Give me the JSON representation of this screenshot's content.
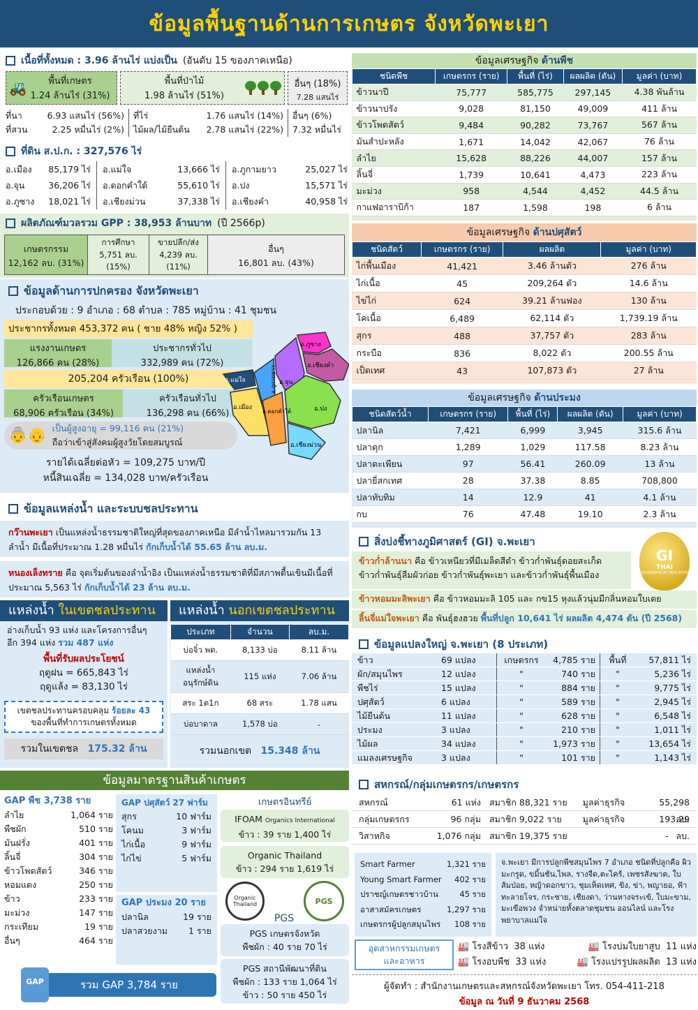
{
  "header": {
    "title": "ข้อมูลพื้นฐานด้านการเกษตร จังหวัดพะเยา"
  },
  "land": {
    "heading": "เนื้อที่ทั้งหมด : 3.96 ล้านไร่ แบ่งเป็น",
    "rank": "(อันดับ 15 ของภาคเหนือ)",
    "farm_label": "พื้นที่เกษตร",
    "farm_value": "1.24 ล้านไร่ (31%)",
    "forest_label": "พื้นที่ป่าไม้",
    "forest_value": "1.98 ล้านไร่ (51%)",
    "other_label": "อื่นๆ (18%)",
    "other_value": "7.28 แสนไร่",
    "sub": [
      {
        "label": "ที่นา",
        "value": "6.93 แสนไร่ (56%)"
      },
      {
        "label": "ที่สวน",
        "value": "2.25 หมื่นไร่ (2%)"
      },
      {
        "label": "ที่ไร่",
        "value": "1.76 แสนไร่ (14%)"
      },
      {
        "label": "ไม้ผล/ไม้ยืนต้น",
        "value": "2.78 แสนไร่ (22%)"
      },
      {
        "label": "อื่นๆ (6%)",
        "value": "7.32 หมื่นไร่"
      }
    ]
  },
  "spk": {
    "heading": "ที่ดิน ส.ป.ก. : 327,576 ไร่",
    "items": [
      {
        "name": "อ.เมือง",
        "value": "85,179 ไร่"
      },
      {
        "name": "อ.แม่ใจ",
        "value": "13,666 ไร่"
      },
      {
        "name": "อ.ภูกามยาว",
        "value": "25,027 ไร่"
      },
      {
        "name": "อ.จุน",
        "value": "36,206 ไร่"
      },
      {
        "name": "อ.ดอกคำใต้",
        "value": "55,610 ไร่"
      },
      {
        "name": "อ.ปง",
        "value": "15,571 ไร่"
      },
      {
        "name": "อ.ภูซาง",
        "value": "18,021 ไร่"
      },
      {
        "name": "อ.เชียงม่วน",
        "value": "37,338 ไร่"
      },
      {
        "name": "อ.เชียงคำ",
        "value": "40,958 ไร่"
      }
    ]
  },
  "gpp": {
    "heading": "ผลิตภัณฑ์มวลรวม GPP : 38,953 ล้านบาท",
    "year": "(ปี 2566p)",
    "agri_label": "เกษตรกรรม",
    "agri_value": "12,162 ลบ. (31%)",
    "edu_label": "การศึกษา",
    "edu_value": "5,751 ลบ.",
    "edu_pct": "(15%)",
    "trade_label": "ขายปลีก/ส่ง",
    "trade_value": "4,239 ลบ.",
    "trade_pct": "(11%)",
    "other_label": "อื่นๆ",
    "other_value": "16,801 ลบ. (43%)"
  },
  "admin": {
    "heading": "ข้อมูลด้านการปกครอง จังหวัดพะเยา",
    "compose": "ประกอบด้วย : 9 อำเภอ : 68 ตำบล : 785 หมู่บ้าน : 41 ชุมชน",
    "pop_total": "ประชากรทั้งหมด 453,372 คน ( ชาย 48% หญิง 52% )",
    "labor_label": "แรงงานเกษตร",
    "labor_value": "126,866 คน (28%)",
    "genpop_label": "ประชากรทั่วไป",
    "genpop_value": "332,989 คน  (72%)",
    "households": "205,204 ครัวเรือน  (100%)",
    "farmhh_label": "ครัวเรือนเกษตร",
    "farmhh_value": "68,906 ครัวเรือน (34%)",
    "genhh_label": "ครัวเรือนทั่วไป",
    "genhh_value": "136,298 คน (66%)",
    "elder1": "เป็นผู้สูงอายุ = 99,116 คน (21%)",
    "elder2": "ถือว่าเข้าสู่สังคมผู้สูงวัยโดยสมบูรณ์",
    "income": "รายได้เฉลี่ยต่อหัว = 109,275 บาท/ปี",
    "debt": "หนี้สินเฉลี่ย = 134,028 บาท/ครัวเรือน",
    "map_labels": [
      "อ.ภูซาง",
      "อ.เชียงคำ",
      "อ.แม่ใจ",
      "อ.ภูกามยาว",
      "อ.จุน",
      "อ.เมือง",
      "อ.ดอกคำใต้",
      "อ.ปง",
      "อ.เชียงม่วน"
    ]
  },
  "water": {
    "heading": "ข้อมูลแหล่งน้ำ และระบบชลประทาน",
    "kwan_name": "กว๊านพะเยา",
    "kwan_text": " เป็นแหล่งน้ำธรรมชาติใหญ่ที่สุดของภาคเหนือ มีลำน้ำไหลมารวมกัน 13 ลำน้ำ มีเนื้อที่ประมาณ 1.28 หมื่นไร่ ",
    "kwan_store": "กักเก็บน้ำได้ 55.65 ล้าน ลบ.ม.",
    "nong_name": "หนองเล็งทราย",
    "nong_text": " คือ จุดเริ่มต้นของลำน้ำอิง เป็นแหล่งน้ำธรรมชาติที่มีสภาพตื้นเขินมีเนื้อที่ประมาณ 5,563 ไร่ ",
    "nong_store": "กักเก็บน้ำได้ 23 ล้าน ลบ.ม.",
    "in_title_a": "แหล่งน้ำ ",
    "in_title_b": "ในเขตชลประทาน",
    "in_text1": "อ่างเก็บน้ำ 93 แห่ง และโครงการอื่นๆ",
    "in_text2": "อีก 394 แห่ง ",
    "in_total_units": "รวม 487 แห่ง",
    "benefit_title": "พื้นที่รับผลประโยชน์",
    "rain": "ฤดูฝน = 665,843 ไร่",
    "dry": "ฤดูแล้ง =  83,130 ไร่",
    "cover1": "เขตชลประทานครอบคลุม ",
    "cover_pct": "ร้อยละ 43",
    "cover2": "ของพื้นที่ทำการเกษตรทั้งหมด",
    "in_total_label": "รวมในเขตชล",
    "in_total_value": "175.32 ล้าน",
    "out_title_a": "แหล่งน้ำ ",
    "out_title_b": "นอกเขตชลประทาน",
    "out_head": [
      "ประเภท",
      "จำนวน",
      "ลบ.ม."
    ],
    "out_rows": [
      [
        "บ่อจิ๋ว พด.",
        "8,133 บ่อ",
        "8.11 ล้าน"
      ],
      [
        "แหล่งน้ำ\nอนุรักษ์ดิน",
        "115 แห่ง",
        "7.06 ล้าน"
      ],
      [
        "สระ 1ต1ก",
        "68 สระ",
        "1.78 แสน"
      ],
      [
        "บ่อบาดาล",
        "1,578 บ่อ",
        "-"
      ]
    ],
    "out_total_label": "รวมนอกเขต",
    "out_total_value": "15.348 ล้าน"
  },
  "standard": {
    "heading": "ข้อมูลมาตรฐานสินค้าเกษตร",
    "gap_plant_title": "GAP พืช 3,738 ราย",
    "gap_plant": [
      [
        "ลำไย",
        "1,064 ราย"
      ],
      [
        "พืชผัก",
        "510 ราย"
      ],
      [
        "มันฝรั่ง",
        "401 ราย"
      ],
      [
        "ลิ้นจี่",
        "304 ราย"
      ],
      [
        "ข้าวโพดสัตว์",
        "346 ราย"
      ],
      [
        "หอมแดง",
        "250 ราย"
      ],
      [
        "ข้าว",
        "233 ราย"
      ],
      [
        "มะม่วง",
        "147 ราย"
      ],
      [
        "กระเทียม",
        "19 ราย"
      ],
      [
        "อื่นๆ",
        "464 ราย"
      ]
    ],
    "gap_animal_title": "GAP ปศุสัตว์ 27 ฟาร์ม",
    "gap_animal": [
      [
        "สุกร",
        "10 ฟาร์ม"
      ],
      [
        "โคนม",
        "3 ฟาร์ม"
      ],
      [
        "ไก่เนื้อ",
        "9 ฟาร์ม"
      ],
      [
        "ไก่ไข่",
        "5 ฟาร์ม"
      ]
    ],
    "gap_fish_title": "GAP ประมง 20 ราย",
    "gap_fish": [
      [
        "ปลานิล",
        "19 ราย"
      ],
      [
        "ปลาสวยงาม",
        "1 ราย"
      ]
    ],
    "organic_title": "เกษตรอินทรีย์",
    "ifoam_title": "IFOAM",
    "ifoam_sub": "Organics International",
    "ifoam_value": "ข้าว : 39 ราย 1,400 ไร่",
    "ot_title": "Organic Thailand",
    "ot_value": "ข้าว : 294 ราย 1,619 ไร่",
    "pgs_label": "PGS",
    "ot_logo_text": "Organic Thailand",
    "pgs_logo_text": "PGS",
    "pgs1_title": "PGS เกษตรจังหวัด",
    "pgs1_value": "พืชผัก : 40 ราย 70 ไร่",
    "pgs2_title": "PGS สถานีพัฒนาที่ดิน",
    "pgs2_value1": "พืชผัก : 133 ราย 1,064 ไร่",
    "pgs2_value2": "ข้าว : 50 ราย 450 ไร่",
    "gap_total": "รวม GAP 3,784 ราย",
    "gap_badge": "GAP"
  },
  "crop": {
    "title_a": "ข้อมูลเศรษฐกิจ ",
    "title_b": "ด้านพืช",
    "head": [
      "ชนิดพืช",
      "เกษตรกร (ราย)",
      "พื้นที่ (ไร่)",
      "ผลผลิต (ตัน)",
      "มูลค่า (บาท)"
    ],
    "rows": [
      [
        "ข้าวนาปี",
        "75,777",
        "585,775",
        "297,145",
        "4.38 พันล้าน"
      ],
      [
        "ข้าวนาปรัง",
        "9,028",
        "81,150",
        "49,009",
        "411 ล้าน"
      ],
      [
        "ข้าวโพดสัตว์",
        "9,484",
        "90,282",
        "73,767",
        "567 ล้าน"
      ],
      [
        "มันสำปะหลัง",
        "1,671",
        "14,042",
        "42,067",
        "76 ล้าน"
      ],
      [
        "ลำไย",
        "15,628",
        "88,226",
        "44,007",
        "157 ล้าน"
      ],
      [
        "ลิ้นจี่",
        "1,739",
        "10,641",
        "4,473",
        "223 ล้าน"
      ],
      [
        "มะม่วง",
        "958",
        "4,544",
        "4,452",
        "44.5 ล้าน"
      ],
      [
        "กาแฟอาราบิก้า",
        "187",
        "1,598",
        "198",
        "6 ล้าน"
      ]
    ]
  },
  "livestock": {
    "title_a": "ข้อมูลเศรษฐกิจ ",
    "title_b": "ด้านปศุสัตว์",
    "head": [
      "ชนิดสัตว์",
      "เกษตรกร (ราย)",
      "ผลผลิต",
      "มูลค่า (บาท)"
    ],
    "rows": [
      [
        "ไก่พื้นเมือง",
        "41,421",
        "3.46 ล้านตัว",
        "276 ล้าน"
      ],
      [
        "ไก่เนื้อ",
        "45",
        "209,264 ตัว",
        "14.6 ล้าน"
      ],
      [
        "ไข่ไก่",
        "624",
        "39.21 ล้านฟอง",
        "130 ล้าน"
      ],
      [
        "โคเนื้อ",
        "6,489",
        "62,114 ตัว",
        "1,739.19 ล้าน"
      ],
      [
        "สุกร",
        "488",
        "37,757 ตัว",
        "283 ล้าน"
      ],
      [
        "กระบือ",
        "836",
        "8,022 ตัว",
        "200.55 ล้าน"
      ],
      [
        "เป็ดเทศ",
        "43",
        "107,873 ตัว",
        "27 ล้าน"
      ]
    ]
  },
  "fishery": {
    "title_a": "ข้อมูลเศรษฐกิจ ",
    "title_b": "ด้านประมง",
    "head": [
      "ชนิดสัตว์น้ำ",
      "เกษตรกร (ราย)",
      "พื้นที่ (ไร่)",
      "ผลผลิต (ตัน)",
      "มูลค่า (บาท)"
    ],
    "rows": [
      [
        "ปลานิล",
        "7,421",
        "6,999",
        "3,945",
        "315.6 ล้าน"
      ],
      [
        "ปลาดุก",
        "1,289",
        "1,029",
        "117.58",
        "8.23 ล้าน"
      ],
      [
        "ปลาตะเพียน",
        "97",
        "56.41",
        "260.09",
        "13 ล้าน"
      ],
      [
        "ปลายี่สกเทศ",
        "28",
        "37.38",
        "8.85",
        "708,800"
      ],
      [
        "ปลาทับทิม",
        "14",
        "12.9",
        "41",
        "4.1 ล้าน"
      ],
      [
        "กบ",
        "76",
        "47.48",
        "19.10",
        "2.3 ล้าน"
      ]
    ]
  },
  "gi": {
    "heading": "สิ่งบ่งชี้ทางภูมิศาสตร์ (GI) จ.พะเยา",
    "l1a": "ข้าวก่ำล้านนา",
    "l1b": " คือ ข้าวเหนียวที่มีเมล็ดสีดำ ข้าวก่ำพันธุ์ดอยสะเก็ด",
    "l2": "ข้าวก่ำพันธุ์ลืมผัวก่อย ข้าวก่ำพันธุ์พะเยา และข้าวก่ำพันธุ์พื้นเมือง",
    "l3a": "ข้าวหอมมะลิพะเยา",
    "l3b": " คือ ข้าวหอมมะลิ 105 และ กข15 หุงแล้วนุ่มมีกลิ่นหอมใบเตย",
    "l4a": "ลิ้นจี่แม่ใจพะเยา",
    "l4b": " คือ พันธุ์ฮงฮวย ",
    "l4c": "พื้นที่ปลูก 10,641 ไร่ ผลผลิต 4,474 ตัน (ปี 2568)",
    "seal_big": "GI",
    "seal_small": "THAI",
    "seal_sub": "GEOGRAPHICAL INDICATION"
  },
  "plots": {
    "heading": "ข้อมูลแปลงใหญ่ จ.พะเยา (8 ประเภท)",
    "farmer_label": "เกษตรกร",
    "area_label": "พื้นที่",
    "ditto": "\"",
    "rows": [
      [
        "ข้าว",
        "69 แปลง",
        "4,785 ราย",
        "57,811 ไร่"
      ],
      [
        "ผัก/สมุนไพร",
        "12 แปลง",
        "740 ราย",
        "5,236 ไร่"
      ],
      [
        "พืชไร่",
        "15 แปลง",
        "884 ราย",
        "9,775 ไร่"
      ],
      [
        "ปศุสัตว์",
        "6 แปลง",
        "589 ราย",
        "2,945 ไร่"
      ],
      [
        "ไม้ยืนต้น",
        "11 แปลง",
        "628 ราย",
        "6,548 ไร่"
      ],
      [
        "ประมง",
        "3 แปลง",
        "210 ราย",
        "1,011 ไร่"
      ],
      [
        "ไม้ผล",
        "34 แปลง",
        "1,973 ราย",
        "13,654 ไร่"
      ],
      [
        "แมลงเศรษฐกิจ",
        "3 แปลง",
        "101 ราย",
        "1,143 ไร่"
      ]
    ]
  },
  "coop": {
    "heading": "สหกรณ์/กลุ่มเกษตรกร/เกษตรกร",
    "rows": [
      [
        "สหกรณ์",
        "61 แห่ง",
        "สมาชิก 88,321 ราย",
        "มูลค่าธุรกิจ",
        "55,298 ลบ."
      ],
      [
        "กลุ่มเกษตรกร",
        "96 กลุ่ม",
        "สมาชิก 9,022 ราย",
        "มูลค่าธุรกิจ",
        "193.29 ลบ."
      ],
      [
        "วิสาหกิจ",
        "1,076 กลุ่ม",
        "สมาชิก 19,375 ราย",
        "",
        "-"
      ]
    ],
    "farmers": [
      [
        "Smart Farmer",
        "1,321 ราย"
      ],
      [
        "Young Smart Farmer",
        "402 ราย"
      ],
      [
        "ปราชญ์เกษตรชาวบ้าน",
        "45 ราย"
      ],
      [
        "อาสาสมัครเกษตร",
        "1,297 ราย"
      ],
      [
        "เกษตรกรผู้ปลูกสมุนไพร",
        "108 ราย"
      ]
    ],
    "herb_text": "จ.พะเยา มีการปลูกพืชสมุนไพร 7 อำเภอ ชนิดที่ปลูกคือ ผิวมะกรูด, ขมิ้นชัน,ไพล, รางจืด,ตะไคร้, เพชรสังฆาต, ใบส้มป่อย, หญ้าดอกขาว, ชุมเห็ดเทศ, ขิง, ข่า, พญายอ, ฟ้าทะลายโจร, กระชาย, เชียงดา, ว่านหางจระเข้, ใบมะขาม, มะเขือพวง จำหน่ายทั้งตลาดชุมชน ออนไลน์ และโรงพยาบาลแม่ใจ"
  },
  "industry": {
    "label1": "อุตสาหกรรมเกษตร",
    "label2": "และอาหาร",
    "items": [
      [
        "โรงสีข้าว",
        "38 แห่ง"
      ],
      [
        "โรงบ่มใบยาสูบ",
        "11 แห่ง"
      ],
      [
        "โรงอบพืช",
        "33 แห่ง"
      ],
      [
        "โรงแปรรูปผลผลิต",
        "13 แห่ง"
      ]
    ]
  },
  "footer": {
    "credit": "ผู้จัดทำ : สำนักงานเกษตรและสหกรณ์จังหวัดพะเยา โทร. 054-411-218",
    "date": "ข้อมูล ณ วันที่ 9 ธันวาคม 2568"
  }
}
